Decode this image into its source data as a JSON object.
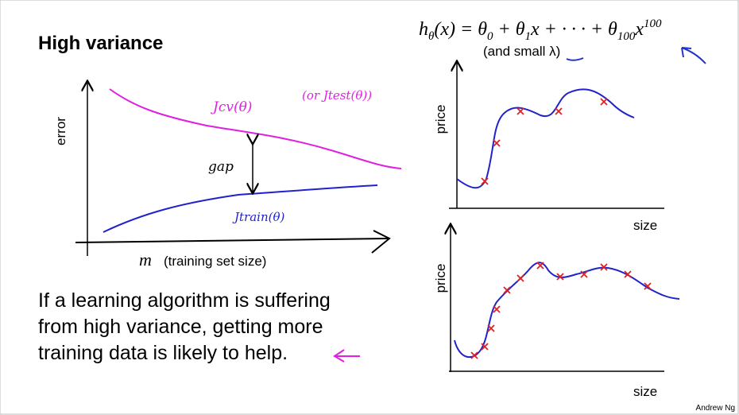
{
  "header": {
    "title": "High variance"
  },
  "formula": {
    "parts": [
      "h",
      "θ",
      "(x) = θ",
      "0",
      " + θ",
      "1",
      "x + · · · + θ",
      "100",
      "x",
      "100"
    ],
    "note": "(and small λ)"
  },
  "left_plot": {
    "y_label": "error",
    "x_symbol": "m",
    "x_label": "(training set size)",
    "cv_label": "Jcv(θ)",
    "test_label": "(or Jtest(θ))",
    "gap_label": "gap",
    "train_label": "Jtrain(θ)"
  },
  "body": {
    "lines": [
      "If a learning algorithm is suffering",
      "from high variance, getting more",
      "training data is likely to help."
    ]
  },
  "top_plot": {
    "y_label": "price",
    "x_label": "size"
  },
  "bottom_plot": {
    "y_label": "price",
    "x_label": "size"
  },
  "footer": {
    "author": "Andrew Ng"
  }
}
